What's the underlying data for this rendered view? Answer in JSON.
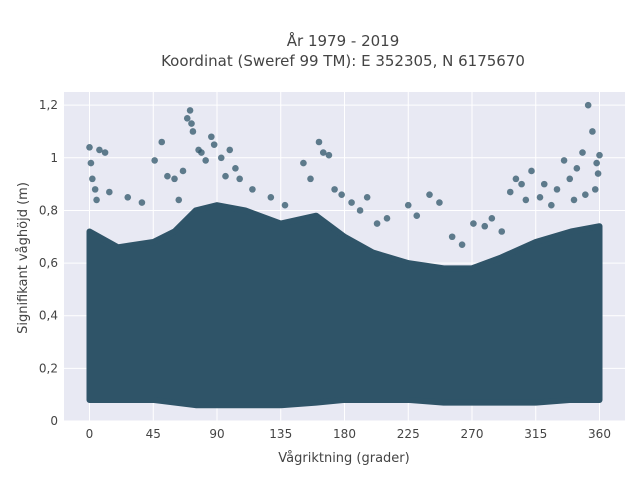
{
  "chart_data": {
    "type": "scatter",
    "title_lines": [
      "År 1979 - 2019",
      "Koordinat (Sweref 99 TM): E 352305, N 6175670"
    ],
    "xlabel": "Vågriktning (grader)",
    "ylabel": "Signifikant våghöjd (m)",
    "xlim": [
      -18,
      378
    ],
    "ylim": [
      0,
      1.25
    ],
    "xticks": [
      0,
      45,
      90,
      135,
      180,
      225,
      270,
      315,
      360
    ],
    "xtick_labels": [
      "0",
      "45",
      "90",
      "135",
      "180",
      "225",
      "270",
      "315",
      "360"
    ],
    "yticks": [
      0,
      0.2,
      0.4,
      0.6,
      0.8,
      1.0,
      1.2
    ],
    "ytick_labels": [
      "0",
      "0,2",
      "0,4",
      "0,6",
      "0,8",
      "1",
      "1,2"
    ],
    "grid": true,
    "colors": {
      "marker": "#2f5468",
      "plot_bg": "#e8e9f3",
      "grid": "#ffffff"
    },
    "dense_band": {
      "x": [
        0,
        20,
        45,
        60,
        75,
        90,
        110,
        135,
        160,
        180,
        200,
        225,
        250,
        270,
        290,
        315,
        340,
        360
      ],
      "y_low": [
        0.08,
        0.08,
        0.08,
        0.07,
        0.06,
        0.06,
        0.06,
        0.06,
        0.07,
        0.08,
        0.08,
        0.08,
        0.07,
        0.07,
        0.07,
        0.07,
        0.08,
        0.08
      ],
      "y_high": [
        0.72,
        0.66,
        0.68,
        0.72,
        0.8,
        0.82,
        0.8,
        0.75,
        0.78,
        0.7,
        0.64,
        0.6,
        0.58,
        0.58,
        0.62,
        0.68,
        0.72,
        0.74
      ]
    },
    "points": [
      {
        "x": 0,
        "y": 1.04
      },
      {
        "x": 1,
        "y": 0.98
      },
      {
        "x": 2,
        "y": 0.92
      },
      {
        "x": 4,
        "y": 0.88
      },
      {
        "x": 7,
        "y": 1.03
      },
      {
        "x": 11,
        "y": 1.02
      },
      {
        "x": 14,
        "y": 0.87
      },
      {
        "x": 5,
        "y": 0.84
      },
      {
        "x": 27,
        "y": 0.85
      },
      {
        "x": 37,
        "y": 0.83
      },
      {
        "x": 46,
        "y": 0.99
      },
      {
        "x": 51,
        "y": 1.06
      },
      {
        "x": 55,
        "y": 0.93
      },
      {
        "x": 60,
        "y": 0.92
      },
      {
        "x": 63,
        "y": 0.84
      },
      {
        "x": 66,
        "y": 0.95
      },
      {
        "x": 69,
        "y": 1.15
      },
      {
        "x": 71,
        "y": 1.18
      },
      {
        "x": 72,
        "y": 1.13
      },
      {
        "x": 73,
        "y": 1.1
      },
      {
        "x": 77,
        "y": 1.03
      },
      {
        "x": 79,
        "y": 1.02
      },
      {
        "x": 82,
        "y": 0.99
      },
      {
        "x": 86,
        "y": 1.08
      },
      {
        "x": 88,
        "y": 1.05
      },
      {
        "x": 93,
        "y": 1.0
      },
      {
        "x": 96,
        "y": 0.93
      },
      {
        "x": 99,
        "y": 1.03
      },
      {
        "x": 103,
        "y": 0.96
      },
      {
        "x": 106,
        "y": 0.92
      },
      {
        "x": 115,
        "y": 0.88
      },
      {
        "x": 128,
        "y": 0.85
      },
      {
        "x": 138,
        "y": 0.82
      },
      {
        "x": 151,
        "y": 0.98
      },
      {
        "x": 156,
        "y": 0.92
      },
      {
        "x": 162,
        "y": 1.06
      },
      {
        "x": 165,
        "y": 1.02
      },
      {
        "x": 169,
        "y": 1.01
      },
      {
        "x": 173,
        "y": 0.88
      },
      {
        "x": 178,
        "y": 0.86
      },
      {
        "x": 185,
        "y": 0.83
      },
      {
        "x": 191,
        "y": 0.8
      },
      {
        "x": 196,
        "y": 0.85
      },
      {
        "x": 203,
        "y": 0.75
      },
      {
        "x": 210,
        "y": 0.77
      },
      {
        "x": 225,
        "y": 0.82
      },
      {
        "x": 231,
        "y": 0.78
      },
      {
        "x": 240,
        "y": 0.86
      },
      {
        "x": 247,
        "y": 0.83
      },
      {
        "x": 256,
        "y": 0.7
      },
      {
        "x": 263,
        "y": 0.67
      },
      {
        "x": 271,
        "y": 0.75
      },
      {
        "x": 279,
        "y": 0.74
      },
      {
        "x": 284,
        "y": 0.77
      },
      {
        "x": 291,
        "y": 0.72
      },
      {
        "x": 297,
        "y": 0.87
      },
      {
        "x": 301,
        "y": 0.92
      },
      {
        "x": 305,
        "y": 0.9
      },
      {
        "x": 308,
        "y": 0.84
      },
      {
        "x": 312,
        "y": 0.95
      },
      {
        "x": 318,
        "y": 0.85
      },
      {
        "x": 321,
        "y": 0.9
      },
      {
        "x": 330,
        "y": 0.88
      },
      {
        "x": 335,
        "y": 0.99
      },
      {
        "x": 339,
        "y": 0.92
      },
      {
        "x": 344,
        "y": 0.96
      },
      {
        "x": 348,
        "y": 1.02
      },
      {
        "x": 352,
        "y": 1.2
      },
      {
        "x": 355,
        "y": 1.1
      },
      {
        "x": 358,
        "y": 0.98
      },
      {
        "x": 359,
        "y": 0.94
      },
      {
        "x": 360,
        "y": 1.01
      },
      {
        "x": 357,
        "y": 0.88
      },
      {
        "x": 350,
        "y": 0.86
      },
      {
        "x": 342,
        "y": 0.84
      },
      {
        "x": 326,
        "y": 0.82
      }
    ]
  }
}
